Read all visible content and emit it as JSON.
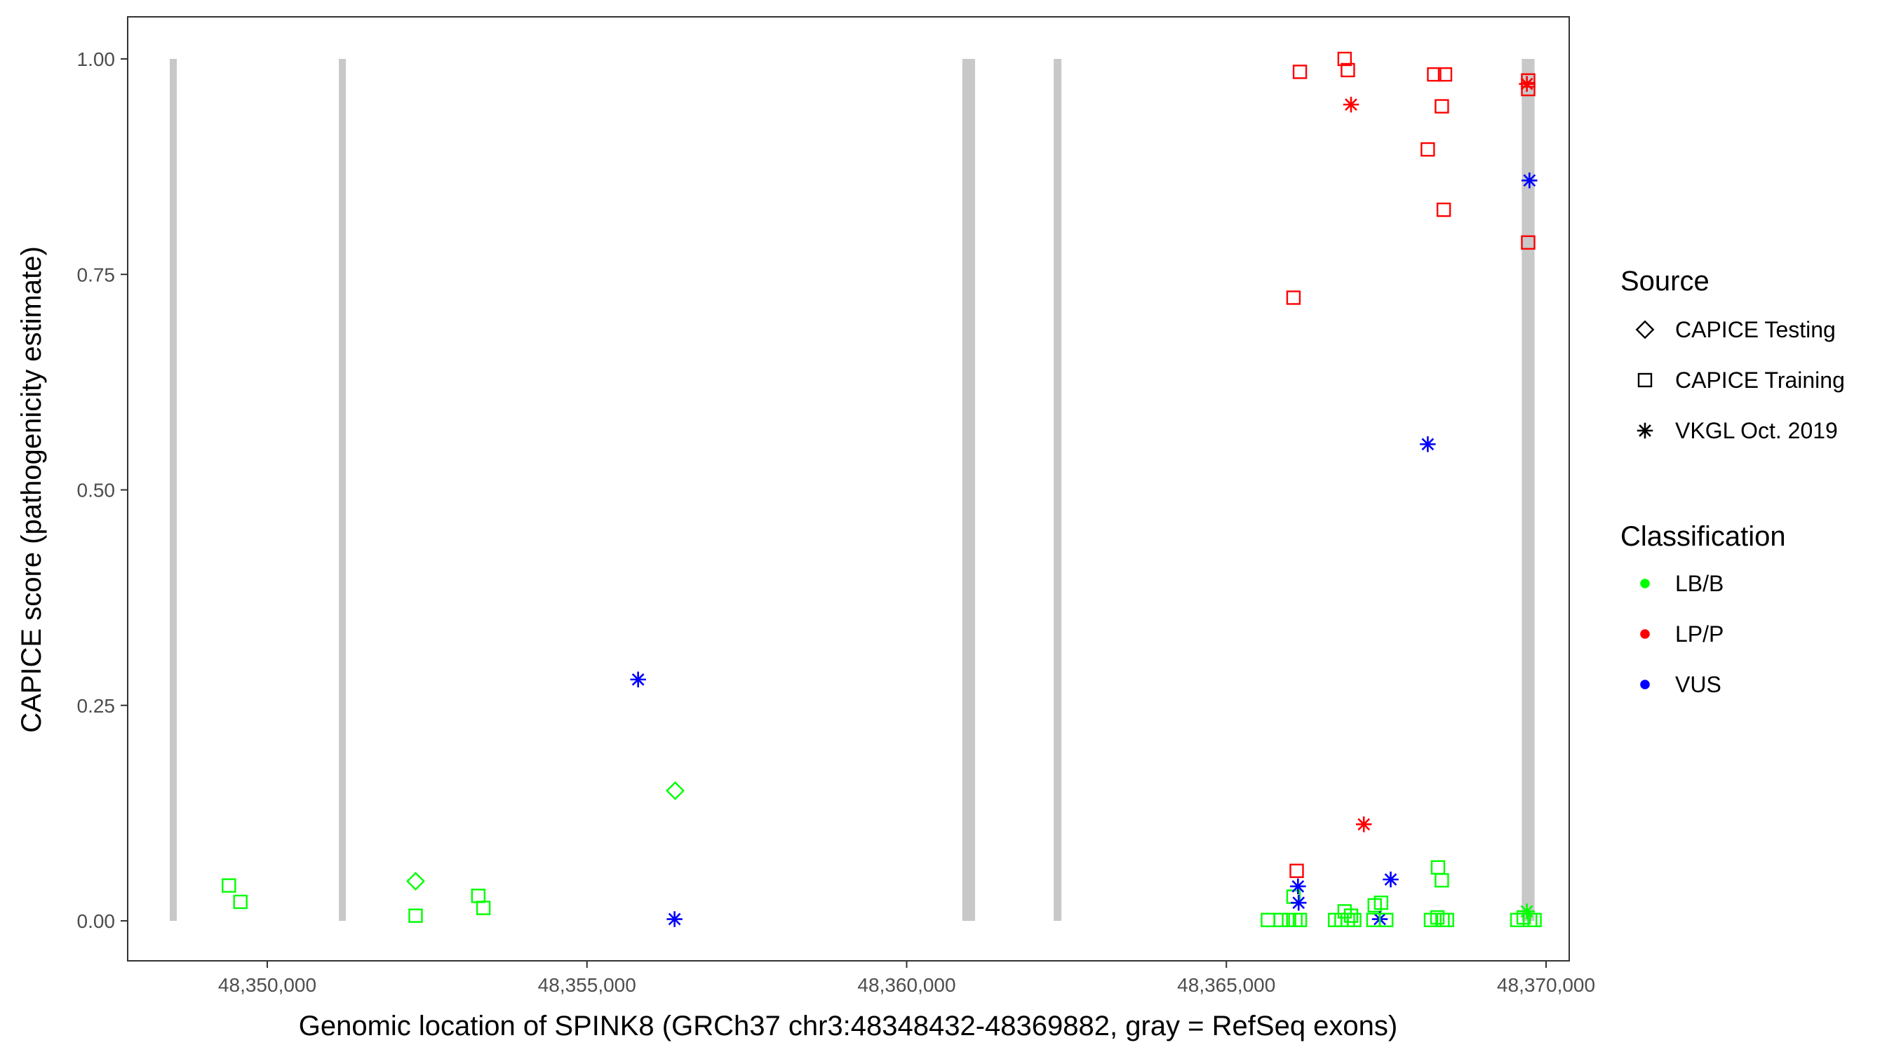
{
  "chart_data": {
    "type": "scatter",
    "xlabel": "Genomic location of SPINK8 (GRCh37 chr3:48348432-48369882, gray = RefSeq exons)",
    "ylabel": "CAPICE score (pathogenicity estimate)",
    "xlim": [
      48348432,
      48369882
    ],
    "ylim": [
      0,
      1
    ],
    "x_ticks": [
      48350000,
      48355000,
      48360000,
      48365000,
      48370000
    ],
    "x_tick_labels": [
      "48,350,000",
      "48,355,000",
      "48,360,000",
      "48,365,000",
      "48,370,000"
    ],
    "y_ticks": [
      0,
      0.25,
      0.5,
      0.75,
      1
    ],
    "y_tick_labels": [
      "0.00",
      "0.25",
      "0.50",
      "0.75",
      "1.00"
    ],
    "grid": false,
    "legend_position": "right",
    "exons": [
      {
        "start": 48348480,
        "end": 48348580
      },
      {
        "start": 48351120,
        "end": 48351230
      },
      {
        "start": 48360870,
        "end": 48361070
      },
      {
        "start": 48362300,
        "end": 48362420
      },
      {
        "start": 48369620,
        "end": 48369820
      }
    ],
    "legends": [
      {
        "title": "Source",
        "entries": [
          {
            "label": "CAPICE Testing",
            "shape": "diamond"
          },
          {
            "label": "CAPICE Training",
            "shape": "square"
          },
          {
            "label": "VKGL Oct. 2019",
            "shape": "asterisk"
          }
        ]
      },
      {
        "title": "Classification",
        "entries": [
          {
            "label": "LB/B",
            "color": "#00ff00"
          },
          {
            "label": "LP/P",
            "color": "#ff0000"
          },
          {
            "label": "VUS",
            "color": "#0000ff"
          }
        ]
      }
    ],
    "colors": {
      "LB/B": "#00ff00",
      "LP/P": "#ff0000",
      "VUS": "#0000ff",
      "exon": "#c8c8c8"
    },
    "points": [
      {
        "x": 48349400,
        "y": 0.041,
        "source": "CAPICE Training",
        "class": "LB/B"
      },
      {
        "x": 48349580,
        "y": 0.022,
        "source": "CAPICE Training",
        "class": "LB/B"
      },
      {
        "x": 48352320,
        "y": 0.046,
        "source": "CAPICE Testing",
        "class": "LB/B"
      },
      {
        "x": 48352320,
        "y": 0.006,
        "source": "CAPICE Training",
        "class": "LB/B"
      },
      {
        "x": 48353300,
        "y": 0.029,
        "source": "CAPICE Training",
        "class": "LB/B"
      },
      {
        "x": 48353380,
        "y": 0.015,
        "source": "CAPICE Training",
        "class": "LB/B"
      },
      {
        "x": 48355800,
        "y": 0.28,
        "source": "VKGL Oct. 2019",
        "class": "VUS"
      },
      {
        "x": 48356380,
        "y": 0.151,
        "source": "CAPICE Testing",
        "class": "LB/B"
      },
      {
        "x": 48356370,
        "y": 0.002,
        "source": "VKGL Oct. 2019",
        "class": "VUS"
      },
      {
        "x": 48366050,
        "y": 0.723,
        "source": "CAPICE Training",
        "class": "LP/P"
      },
      {
        "x": 48366150,
        "y": 0.985,
        "source": "CAPICE Training",
        "class": "LP/P"
      },
      {
        "x": 48366100,
        "y": 0.058,
        "source": "CAPICE Training",
        "class": "LP/P"
      },
      {
        "x": 48366050,
        "y": 0.028,
        "source": "CAPICE Training",
        "class": "LB/B"
      },
      {
        "x": 48366120,
        "y": 0.04,
        "source": "VKGL Oct. 2019",
        "class": "VUS"
      },
      {
        "x": 48366130,
        "y": 0.021,
        "source": "VKGL Oct. 2019",
        "class": "VUS"
      },
      {
        "x": 48365650,
        "y": 0.001,
        "source": "CAPICE Training",
        "class": "LB/B"
      },
      {
        "x": 48365850,
        "y": 0.001,
        "source": "CAPICE Training",
        "class": "LB/B"
      },
      {
        "x": 48365980,
        "y": 0.001,
        "source": "CAPICE Training",
        "class": "LB/B"
      },
      {
        "x": 48366080,
        "y": 0.001,
        "source": "CAPICE Training",
        "class": "LB/B"
      },
      {
        "x": 48366150,
        "y": 0.001,
        "source": "CAPICE Training",
        "class": "LB/B"
      },
      {
        "x": 48366850,
        "y": 1.0,
        "source": "CAPICE Training",
        "class": "LP/P"
      },
      {
        "x": 48366900,
        "y": 0.987,
        "source": "CAPICE Training",
        "class": "LP/P"
      },
      {
        "x": 48366950,
        "y": 0.947,
        "source": "VKGL Oct. 2019",
        "class": "LP/P"
      },
      {
        "x": 48367150,
        "y": 0.112,
        "source": "VKGL Oct. 2019",
        "class": "LP/P"
      },
      {
        "x": 48366850,
        "y": 0.011,
        "source": "CAPICE Training",
        "class": "LB/B"
      },
      {
        "x": 48366950,
        "y": 0.006,
        "source": "CAPICE Training",
        "class": "LB/B"
      },
      {
        "x": 48366700,
        "y": 0.001,
        "source": "CAPICE Training",
        "class": "LB/B"
      },
      {
        "x": 48366800,
        "y": 0.001,
        "source": "CAPICE Training",
        "class": "LB/B"
      },
      {
        "x": 48366900,
        "y": 0.001,
        "source": "CAPICE Training",
        "class": "LB/B"
      },
      {
        "x": 48367000,
        "y": 0.001,
        "source": "CAPICE Training",
        "class": "LB/B"
      },
      {
        "x": 48367320,
        "y": 0.018,
        "source": "CAPICE Training",
        "class": "LB/B"
      },
      {
        "x": 48367420,
        "y": 0.021,
        "source": "CAPICE Training",
        "class": "LB/B"
      },
      {
        "x": 48367570,
        "y": 0.048,
        "source": "VKGL Oct. 2019",
        "class": "VUS"
      },
      {
        "x": 48367400,
        "y": 0.002,
        "source": "VKGL Oct. 2019",
        "class": "VUS"
      },
      {
        "x": 48367300,
        "y": 0.001,
        "source": "CAPICE Training",
        "class": "LB/B"
      },
      {
        "x": 48367500,
        "y": 0.001,
        "source": "CAPICE Training",
        "class": "LB/B"
      },
      {
        "x": 48368150,
        "y": 0.553,
        "source": "VKGL Oct. 2019",
        "class": "VUS"
      },
      {
        "x": 48368150,
        "y": 0.895,
        "source": "CAPICE Training",
        "class": "LP/P"
      },
      {
        "x": 48368250,
        "y": 0.982,
        "source": "CAPICE Training",
        "class": "LP/P"
      },
      {
        "x": 48368420,
        "y": 0.982,
        "source": "CAPICE Training",
        "class": "LP/P"
      },
      {
        "x": 48368370,
        "y": 0.945,
        "source": "CAPICE Training",
        "class": "LP/P"
      },
      {
        "x": 48368400,
        "y": 0.825,
        "source": "CAPICE Training",
        "class": "LP/P"
      },
      {
        "x": 48368310,
        "y": 0.062,
        "source": "CAPICE Training",
        "class": "LB/B"
      },
      {
        "x": 48368370,
        "y": 0.047,
        "source": "CAPICE Training",
        "class": "LB/B"
      },
      {
        "x": 48368200,
        "y": 0.001,
        "source": "CAPICE Training",
        "class": "LB/B"
      },
      {
        "x": 48368300,
        "y": 0.004,
        "source": "CAPICE Training",
        "class": "LB/B"
      },
      {
        "x": 48368380,
        "y": 0.001,
        "source": "CAPICE Training",
        "class": "LB/B"
      },
      {
        "x": 48368450,
        "y": 0.001,
        "source": "CAPICE Training",
        "class": "LB/B"
      },
      {
        "x": 48369720,
        "y": 0.975,
        "source": "CAPICE Training",
        "class": "LP/P"
      },
      {
        "x": 48369720,
        "y": 0.965,
        "source": "CAPICE Training",
        "class": "LP/P"
      },
      {
        "x": 48369700,
        "y": 0.971,
        "source": "VKGL Oct. 2019",
        "class": "LP/P"
      },
      {
        "x": 48369740,
        "y": 0.859,
        "source": "VKGL Oct. 2019",
        "class": "VUS"
      },
      {
        "x": 48369720,
        "y": 0.787,
        "source": "CAPICE Training",
        "class": "LP/P"
      },
      {
        "x": 48369700,
        "y": 0.011,
        "source": "VKGL Oct. 2019",
        "class": "LB/B"
      },
      {
        "x": 48369550,
        "y": 0.001,
        "source": "CAPICE Training",
        "class": "LB/B"
      },
      {
        "x": 48369650,
        "y": 0.004,
        "source": "CAPICE Training",
        "class": "LB/B"
      },
      {
        "x": 48369750,
        "y": 0.001,
        "source": "CAPICE Training",
        "class": "LB/B"
      },
      {
        "x": 48369820,
        "y": 0.001,
        "source": "CAPICE Training",
        "class": "LB/B"
      }
    ]
  }
}
